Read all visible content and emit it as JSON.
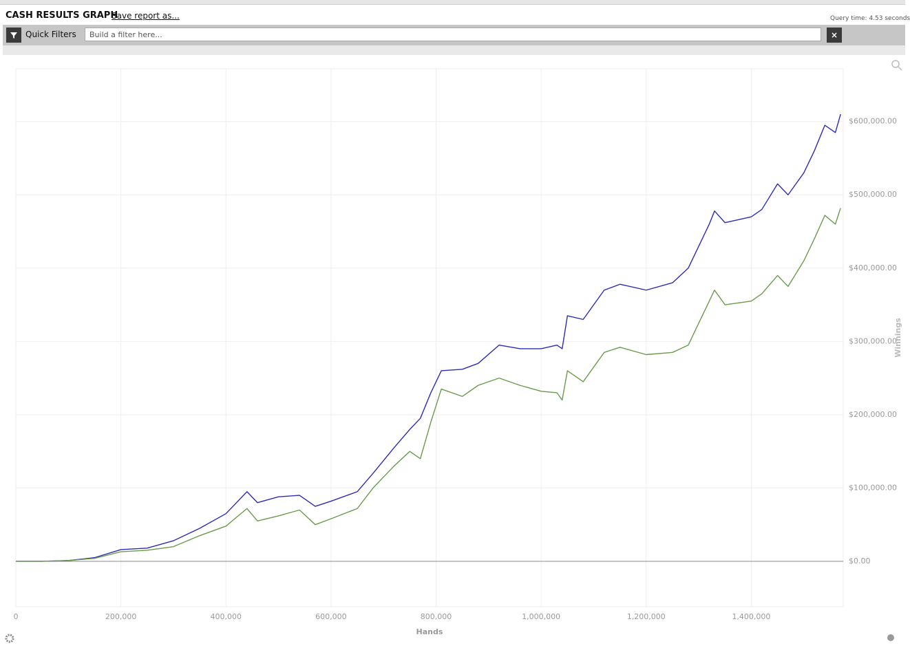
{
  "header": {
    "title": "CASH RESULTS GRAPH",
    "save_link": "Save report as...",
    "query_time": "Query time: 4.53 seconds"
  },
  "filter_bar": {
    "label": "Quick Filters",
    "placeholder": "Build a filter here..."
  },
  "chart_data": {
    "type": "line",
    "x_label": "Hands",
    "y_label": "Winnings",
    "x": [
      0,
      50000,
      100000,
      150000,
      200000,
      250000,
      300000,
      350000,
      400000,
      440000,
      460000,
      500000,
      540000,
      570000,
      600000,
      650000,
      680000,
      720000,
      750000,
      770000,
      790000,
      810000,
      850000,
      880000,
      920000,
      960000,
      1000000,
      1030000,
      1040000,
      1050000,
      1080000,
      1120000,
      1150000,
      1200000,
      1250000,
      1280000,
      1320000,
      1330000,
      1350000,
      1400000,
      1420000,
      1450000,
      1470000,
      1500000,
      1520000,
      1540000,
      1560000,
      1570000
    ],
    "series": [
      {
        "color": "#2b2bb5",
        "values": [
          0,
          0,
          1000,
          5000,
          16000,
          18000,
          28000,
          45000,
          65000,
          95000,
          80000,
          88000,
          90000,
          75000,
          82000,
          95000,
          120000,
          155000,
          180000,
          195000,
          230000,
          260000,
          262000,
          270000,
          295000,
          290000,
          290000,
          295000,
          290000,
          335000,
          330000,
          370000,
          378000,
          370000,
          380000,
          400000,
          460000,
          478000,
          462000,
          470000,
          480000,
          515000,
          500000,
          530000,
          560000,
          595000,
          585000,
          610000
        ]
      },
      {
        "color": "#6a9a4a",
        "values": [
          0,
          0,
          1000,
          4000,
          13000,
          15000,
          20000,
          35000,
          48000,
          72000,
          55000,
          62000,
          70000,
          50000,
          58000,
          72000,
          100000,
          130000,
          150000,
          140000,
          190000,
          235000,
          225000,
          240000,
          250000,
          240000,
          232000,
          230000,
          220000,
          260000,
          245000,
          285000,
          292000,
          282000,
          285000,
          295000,
          355000,
          370000,
          350000,
          355000,
          365000,
          390000,
          375000,
          410000,
          440000,
          472000,
          460000,
          482000
        ]
      }
    ],
    "xlim": [
      0,
      1575000
    ],
    "ylim": [
      -62000,
      672000
    ],
    "xticks": [
      0,
      {
        "value": 200000,
        "label": "200,000"
      },
      {
        "value": 400000,
        "label": "400,000"
      },
      {
        "value": 600000,
        "label": "600,000"
      },
      {
        "value": 800000,
        "label": "800,000"
      },
      {
        "value": 1000000,
        "label": "1,000,000"
      },
      {
        "value": 1200000,
        "label": "1,200,000"
      },
      {
        "value": 1400000,
        "label": "1,400,000"
      }
    ],
    "yticks": [
      {
        "value": 0,
        "label": "$0.00"
      },
      {
        "value": 100000,
        "label": "$100,000.00"
      },
      {
        "value": 200000,
        "label": "$200,000.00"
      },
      {
        "value": 300000,
        "label": "$300,000.00"
      },
      {
        "value": 400000,
        "label": "$400,000.00"
      },
      {
        "value": 500000,
        "label": "$500,000.00"
      },
      {
        "value": 600000,
        "label": "$600,000.00"
      }
    ],
    "grid": true
  }
}
